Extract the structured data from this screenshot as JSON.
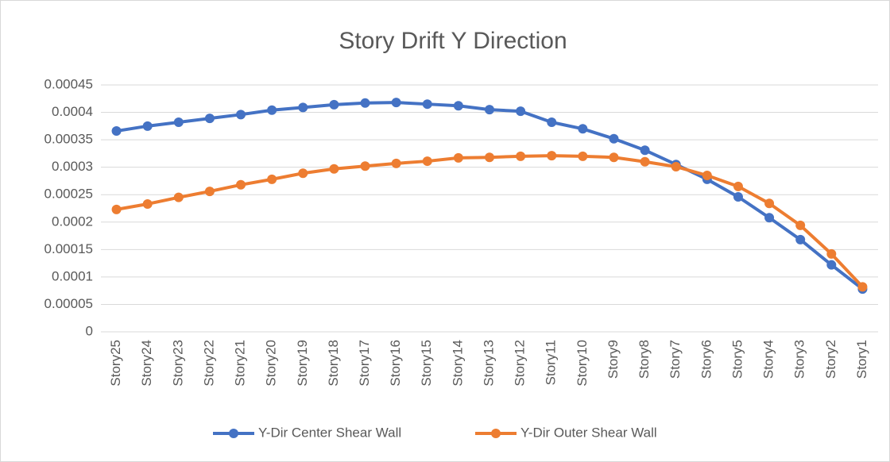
{
  "chart_data": {
    "type": "line",
    "title": "Story Drift  Y Direction",
    "categories": [
      "Story25",
      "Story24",
      "Story23",
      "Story22",
      "Story21",
      "Story20",
      "Story19",
      "Story18",
      "Story17",
      "Story16",
      "Story15",
      "Story14",
      "Story13",
      "Story12",
      "Story11",
      "Story10",
      "Story9",
      "Story8",
      "Story7",
      "Story6",
      "Story5",
      "Story4",
      "Story3",
      "Story2",
      "Story1"
    ],
    "series": [
      {
        "name": "Y-Dir Center Shear Wall",
        "color": "#4472c4",
        "values": [
          0.000366,
          0.000375,
          0.000382,
          0.000389,
          0.000396,
          0.000404,
          0.000409,
          0.000414,
          0.000417,
          0.000418,
          0.000415,
          0.000412,
          0.000405,
          0.000402,
          0.000382,
          0.00037,
          0.000352,
          0.000331,
          0.000305,
          0.000278,
          0.000246,
          0.000208,
          0.000168,
          0.000122,
          7.8e-05
        ]
      },
      {
        "name": "Y-Dir Outer Shear Wall",
        "color": "#ed7d31",
        "values": [
          0.000223,
          0.000233,
          0.000245,
          0.000256,
          0.000268,
          0.000278,
          0.000289,
          0.000297,
          0.000302,
          0.000307,
          0.000311,
          0.000317,
          0.000318,
          0.00032,
          0.000321,
          0.00032,
          0.000318,
          0.00031,
          0.000301,
          0.000285,
          0.000265,
          0.000234,
          0.000194,
          0.000142,
          8.2e-05
        ]
      }
    ],
    "ylim": [
      0,
      0.00045
    ],
    "yticks": [
      0,
      5e-05,
      0.0001,
      0.00015,
      0.0002,
      0.00025,
      0.0003,
      0.00035,
      0.0004,
      0.00045
    ],
    "grid": true,
    "legend": "bottom"
  }
}
